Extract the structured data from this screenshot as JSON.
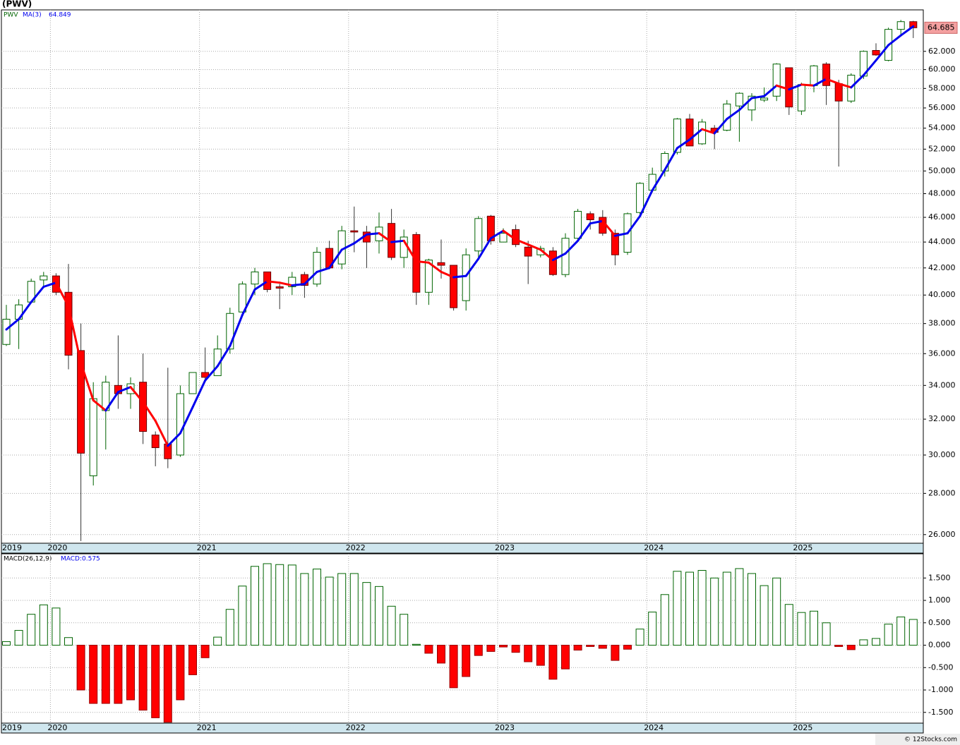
{
  "chart_data": [
    {
      "type": "candlestick",
      "title": "(PWV)",
      "symbol": "PWV",
      "categories": [
        "2019",
        null,
        null,
        null,
        "2020",
        null,
        null,
        null,
        null,
        null,
        null,
        null,
        null,
        null,
        null,
        null,
        "2021",
        null,
        null,
        null,
        null,
        null,
        null,
        null,
        null,
        null,
        null,
        null,
        "2022",
        null,
        null,
        null,
        null,
        null,
        null,
        null,
        null,
        null,
        null,
        null,
        "2023",
        null,
        null,
        null,
        null,
        null,
        null,
        null,
        null,
        null,
        null,
        null,
        "2024",
        null,
        null,
        null,
        null,
        null,
        null,
        null,
        null,
        null,
        null,
        null,
        "2025",
        null,
        null,
        null,
        null,
        null,
        null,
        null,
        null,
        null
      ],
      "open": [
        36.6,
        38.3,
        39.5,
        41.1,
        41.4,
        40.2,
        36.2,
        28.9,
        32.5,
        34.0,
        33.5,
        34.2,
        31.1,
        30.6,
        30.0,
        33.5,
        34.8,
        34.6,
        36.3,
        38.8,
        40.8,
        41.7,
        40.6,
        40.6,
        41.5,
        40.8,
        43.5,
        42.3,
        44.9,
        44.8,
        44.1,
        45.5,
        42.8,
        44.6,
        40.2,
        42.4,
        42.2,
        39.6,
        43.3,
        46.1,
        44.0,
        45.0,
        43.6,
        43.0,
        43.3,
        41.5,
        44.3,
        46.3,
        46.0,
        44.7,
        43.2,
        46.4,
        48.3,
        50.0,
        51.7,
        54.9,
        52.5,
        54.0,
        53.8,
        56.2,
        55.8,
        56.8,
        57.2,
        60.2,
        55.7,
        58.3,
        60.6,
        58.5,
        56.7,
        59.3,
        62.1,
        61.0,
        64.5,
        65.4
      ],
      "high": [
        39.3,
        39.7,
        41.2,
        41.7,
        41.6,
        42.3,
        38.0,
        34.2,
        34.6,
        37.2,
        34.5,
        36.0,
        31.3,
        35.1,
        34.0,
        34.8,
        36.4,
        37.2,
        39.1,
        41.0,
        42.0,
        41.7,
        40.8,
        41.7,
        41.7,
        43.6,
        44.1,
        45.3,
        46.9,
        45.3,
        46.4,
        46.7,
        45.0,
        44.8,
        42.7,
        44.2,
        42.2,
        43.5,
        46.1,
        46.2,
        45.1,
        45.4,
        44.1,
        43.7,
        43.6,
        44.7,
        46.7,
        46.5,
        46.6,
        45.0,
        46.4,
        49.0,
        50.3,
        51.8,
        55.0,
        55.4,
        54.9,
        54.3,
        56.8,
        57.6,
        57.5,
        58.1,
        60.7,
        60.2,
        58.6,
        60.5,
        60.8,
        58.9,
        59.6,
        62.1,
        62.9,
        64.7,
        65.6,
        65.5
      ],
      "low": [
        36.5,
        36.3,
        39.4,
        40.5,
        40.0,
        35.0,
        25.7,
        28.4,
        30.3,
        32.6,
        32.6,
        30.6,
        29.4,
        29.3,
        29.9,
        33.5,
        34.3,
        34.6,
        36.0,
        38.7,
        40.0,
        40.2,
        39.0,
        40.0,
        39.8,
        40.6,
        41.9,
        41.9,
        43.2,
        42.0,
        43.1,
        42.6,
        42.0,
        39.3,
        39.3,
        41.2,
        38.9,
        38.9,
        42.8,
        43.8,
        44.0,
        43.6,
        40.8,
        42.8,
        41.4,
        41.3,
        44.1,
        45.0,
        44.5,
        42.2,
        43.0,
        46.0,
        48.1,
        49.5,
        51.5,
        52.3,
        52.4,
        52.0,
        53.7,
        52.7,
        54.7,
        56.6,
        56.7,
        55.3,
        55.3,
        57.6,
        56.3,
        50.4,
        56.5,
        59.0,
        61.5,
        60.9,
        63.9,
        63.5
      ],
      "close": [
        38.3,
        39.3,
        41.0,
        41.4,
        40.2,
        35.9,
        30.1,
        33.2,
        34.2,
        33.5,
        34.1,
        31.3,
        30.4,
        29.8,
        33.5,
        34.8,
        34.5,
        36.3,
        38.7,
        40.8,
        41.7,
        40.4,
        40.5,
        41.3,
        40.7,
        43.2,
        42.0,
        44.9,
        44.8,
        44.0,
        45.2,
        42.8,
        44.4,
        40.2,
        42.6,
        42.2,
        39.1,
        43.0,
        45.9,
        44.1,
        44.7,
        43.8,
        42.9,
        43.5,
        41.5,
        44.3,
        46.5,
        45.8,
        44.7,
        43.0,
        46.3,
        48.9,
        49.7,
        51.6,
        54.9,
        52.3,
        54.6,
        53.6,
        56.4,
        57.5,
        57.2,
        57.0,
        60.6,
        56.1,
        58.4,
        60.4,
        58.3,
        56.7,
        59.4,
        62.0,
        61.6,
        64.5,
        65.4,
        64.685
      ],
      "up_color": "#006400",
      "down_color": "#ff0000",
      "overlay": {
        "name": "MA(3)",
        "up_color": "#0000ee",
        "down_color": "#ff0000",
        "values": [
          37.6,
          38.3,
          39.5,
          40.6,
          40.9,
          39.2,
          35.4,
          33.1,
          32.5,
          33.6,
          33.9,
          33.0,
          31.9,
          30.5,
          31.2,
          32.7,
          34.3,
          35.2,
          36.5,
          38.6,
          40.4,
          41.0,
          40.9,
          40.7,
          40.8,
          41.7,
          42.0,
          43.4,
          43.9,
          44.6,
          44.7,
          44.0,
          44.1,
          42.5,
          42.4,
          41.7,
          41.3,
          41.4,
          42.7,
          44.3,
          44.9,
          44.2,
          43.8,
          43.4,
          42.6,
          43.1,
          44.1,
          45.5,
          45.7,
          44.5,
          44.7,
          46.1,
          48.3,
          50.1,
          52.1,
          52.9,
          53.9,
          53.5,
          54.9,
          55.8,
          57.0,
          57.2,
          58.3,
          57.9,
          58.4,
          58.3,
          59.0,
          58.5,
          58.1,
          59.4,
          61.0,
          62.7,
          63.8,
          64.849
        ]
      },
      "ylim": [
        25.6,
        66.8
      ],
      "log_scale": true,
      "grid": true,
      "yticks": [
        {
          "value": 26,
          "label": "26.000"
        },
        {
          "value": 28,
          "label": "28.000"
        },
        {
          "value": 30,
          "label": "30.000"
        },
        {
          "value": 32,
          "label": "32.000"
        },
        {
          "value": 34,
          "label": "34.000"
        },
        {
          "value": 36,
          "label": "36.000"
        },
        {
          "value": 38,
          "label": "38.000"
        },
        {
          "value": 40,
          "label": "40.000"
        },
        {
          "value": 42,
          "label": "42.000"
        },
        {
          "value": 44,
          "label": "44.000"
        },
        {
          "value": 46,
          "label": "46.000"
        },
        {
          "value": 48,
          "label": "48.000"
        },
        {
          "value": 50,
          "label": "50.000"
        },
        {
          "value": 52,
          "label": "52.000"
        },
        {
          "value": 54,
          "label": "54.000"
        },
        {
          "value": 56,
          "label": "56.000"
        },
        {
          "value": 58,
          "label": "58.000"
        },
        {
          "value": 60,
          "label": "60.000"
        },
        {
          "value": 62,
          "label": "62.000"
        }
      ]
    },
    {
      "type": "bar",
      "title": "MACD(26,12,9)",
      "current_label": "MACD:0.575",
      "categories": [
        "2019",
        null,
        null,
        null,
        "2020",
        null,
        null,
        null,
        null,
        null,
        null,
        null,
        null,
        null,
        null,
        null,
        "2021",
        null,
        null,
        null,
        null,
        null,
        null,
        null,
        null,
        null,
        null,
        null,
        "2022",
        null,
        null,
        null,
        null,
        null,
        null,
        null,
        null,
        null,
        null,
        null,
        "2023",
        null,
        null,
        null,
        null,
        null,
        null,
        null,
        null,
        null,
        null,
        null,
        "2024",
        null,
        null,
        null,
        null,
        null,
        null,
        null,
        null,
        null,
        null,
        null,
        "2025",
        null,
        null,
        null,
        null,
        null,
        null,
        null,
        null,
        null
      ],
      "series": [
        {
          "name": "MACD",
          "up_color": "#006400",
          "down_color": "#ff0000",
          "values": [
            0.08,
            0.33,
            0.69,
            0.9,
            0.83,
            0.17,
            -1.0,
            -1.3,
            -1.3,
            -1.3,
            -1.22,
            -1.45,
            -1.62,
            -1.72,
            -1.22,
            -0.66,
            -0.28,
            0.18,
            0.8,
            1.32,
            1.76,
            1.82,
            1.8,
            1.79,
            1.6,
            1.7,
            1.52,
            1.6,
            1.6,
            1.4,
            1.31,
            0.87,
            0.69,
            0.02,
            -0.18,
            -0.4,
            -0.95,
            -0.7,
            -0.23,
            -0.14,
            -0.04,
            -0.16,
            -0.37,
            -0.45,
            -0.76,
            -0.53,
            -0.11,
            -0.03,
            -0.07,
            -0.34,
            -0.09,
            0.36,
            0.74,
            1.13,
            1.65,
            1.63,
            1.67,
            1.5,
            1.63,
            1.71,
            1.6,
            1.33,
            1.5,
            0.91,
            0.73,
            0.76,
            0.5,
            -0.03,
            -0.1,
            0.12,
            0.15,
            0.47,
            0.63,
            0.575
          ]
        }
      ],
      "ylim": [
        -1.74,
        2.04
      ],
      "grid": true,
      "yticks": [
        {
          "value": 1.5,
          "label": "1.500"
        },
        {
          "value": 1.0,
          "label": "1.000"
        },
        {
          "value": 0.5,
          "label": "0.500"
        },
        {
          "value": 0,
          "label": "0.000"
        },
        {
          "value": -0.5,
          "label": "-0.500"
        },
        {
          "value": -1.0,
          "label": "-1.000"
        },
        {
          "value": -1.5,
          "label": "-1.500"
        }
      ]
    }
  ],
  "credit": "© 12Stocks.com"
}
